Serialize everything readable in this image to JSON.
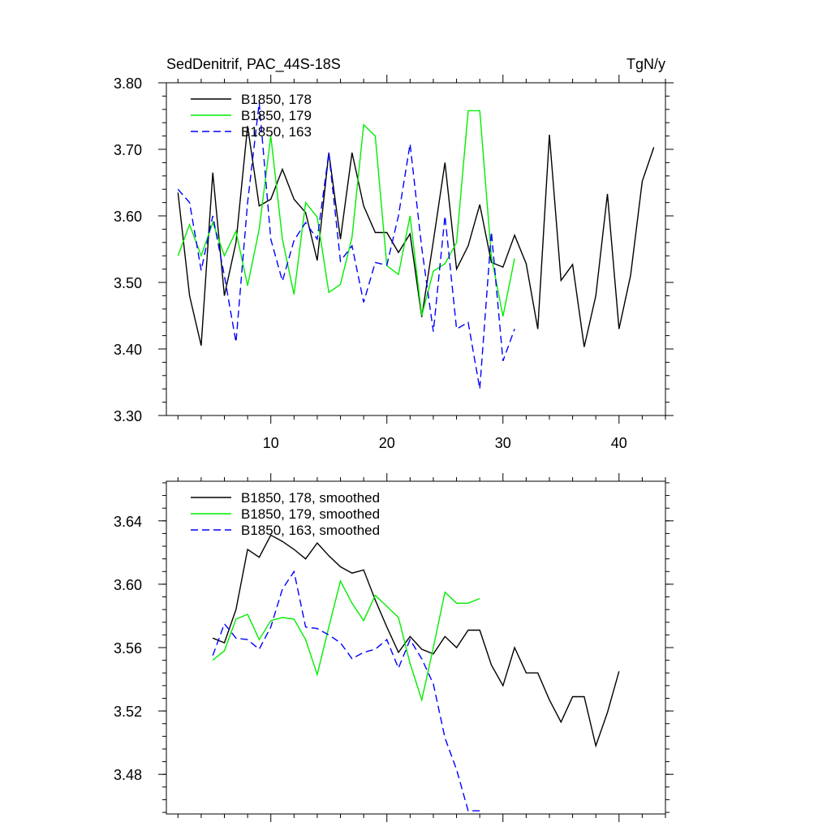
{
  "chart_data": [
    {
      "type": "line",
      "title_left": "SedDenitrif, PAC_44S-18S",
      "title_right": "TgN/y",
      "xlim": [
        1,
        44
      ],
      "ylim": [
        3.3,
        3.8
      ],
      "x_ticks": [
        10,
        20,
        30,
        40
      ],
      "x_tick_labels": [
        "10",
        "20",
        "30",
        "40"
      ],
      "y_ticks": [
        3.3,
        3.4,
        3.5,
        3.6,
        3.7,
        3.8
      ],
      "y_tick_labels": [
        "3.30",
        "3.40",
        "3.50",
        "3.60",
        "3.70",
        "3.80"
      ],
      "legend_position": "top-left",
      "series": [
        {
          "name": "B1850, 178",
          "color": "#000000",
          "dash": "solid",
          "x": [
            2,
            3,
            4,
            5,
            6,
            7,
            8,
            9,
            10,
            11,
            12,
            13,
            14,
            15,
            16,
            17,
            18,
            19,
            20,
            21,
            22,
            23,
            24,
            25,
            26,
            27,
            28,
            29,
            30,
            31,
            32,
            33,
            34,
            35,
            36,
            37,
            38,
            39,
            40,
            41,
            42,
            43
          ],
          "y": [
            3.635,
            3.48,
            3.405,
            3.665,
            3.48,
            3.56,
            3.735,
            3.615,
            3.625,
            3.67,
            3.625,
            3.605,
            3.533,
            3.695,
            3.565,
            3.695,
            3.615,
            3.575,
            3.575,
            3.545,
            3.573,
            3.448,
            3.562,
            3.68,
            3.52,
            3.555,
            3.617,
            3.53,
            3.523,
            3.571,
            3.528,
            3.43,
            3.722,
            3.503,
            3.527,
            3.403,
            3.48,
            3.633,
            3.43,
            3.511,
            3.652,
            3.703
          ]
        },
        {
          "name": "B1850, 179",
          "color": "#00ee00",
          "dash": "solid",
          "x": [
            2,
            3,
            4,
            5,
            6,
            7,
            8,
            9,
            10,
            11,
            12,
            13,
            14,
            15,
            16,
            17,
            18,
            19,
            20,
            21,
            22,
            23,
            24,
            25,
            26,
            27,
            28,
            29,
            30,
            31
          ],
          "y": [
            3.54,
            3.587,
            3.54,
            3.59,
            3.54,
            3.577,
            3.495,
            3.58,
            3.72,
            3.565,
            3.482,
            3.62,
            3.598,
            3.485,
            3.497,
            3.568,
            3.737,
            3.72,
            3.525,
            3.512,
            3.6,
            3.45,
            3.517,
            3.528,
            3.56,
            3.758,
            3.758,
            3.539,
            3.449,
            3.536
          ]
        },
        {
          "name": "B1850, 163",
          "color": "#0000ff",
          "dash": "dashed",
          "x": [
            2,
            3,
            4,
            5,
            6,
            7,
            8,
            9,
            10,
            11,
            12,
            13,
            14,
            15,
            16,
            17,
            18,
            19,
            20,
            21,
            22,
            23,
            24,
            25,
            26,
            27,
            28,
            29,
            30,
            31
          ],
          "y": [
            3.64,
            3.62,
            3.518,
            3.6,
            3.51,
            3.41,
            3.62,
            3.77,
            3.565,
            3.502,
            3.563,
            3.59,
            3.565,
            3.695,
            3.532,
            3.555,
            3.47,
            3.53,
            3.526,
            3.6,
            3.708,
            3.552,
            3.426,
            3.6,
            3.43,
            3.44,
            3.34,
            3.576,
            3.382,
            3.43
          ]
        }
      ]
    },
    {
      "type": "line",
      "xlim": [
        1,
        44
      ],
      "ylim": [
        3.455,
        3.665
      ],
      "x_ticks": [
        10,
        20,
        30,
        40
      ],
      "y_ticks": [
        3.48,
        3.52,
        3.56,
        3.6,
        3.64
      ],
      "y_tick_labels": [
        "3.48",
        "3.52",
        "3.56",
        "3.60",
        "3.64"
      ],
      "legend_position": "top-left",
      "series": [
        {
          "name": "B1850, 178, smoothed",
          "color": "#000000",
          "dash": "solid",
          "x": [
            5,
            6,
            7,
            8,
            9,
            10,
            11,
            12,
            13,
            14,
            15,
            16,
            17,
            18,
            19,
            20,
            21,
            22,
            23,
            24,
            25,
            26,
            27,
            28,
            29,
            30,
            31,
            32,
            33,
            34,
            35,
            36,
            37,
            38,
            39,
            40
          ],
          "y": [
            3.566,
            3.563,
            3.584,
            3.622,
            3.617,
            3.631,
            3.627,
            3.622,
            3.616,
            3.626,
            3.618,
            3.611,
            3.607,
            3.609,
            3.59,
            3.573,
            3.557,
            3.567,
            3.559,
            3.556,
            3.567,
            3.56,
            3.571,
            3.571,
            3.549,
            3.536,
            3.56,
            3.544,
            3.544,
            3.527,
            3.513,
            3.529,
            3.529,
            3.498,
            3.519,
            3.545
          ]
        },
        {
          "name": "B1850, 179, smoothed",
          "color": "#00ee00",
          "dash": "solid",
          "x": [
            5,
            6,
            7,
            8,
            9,
            10,
            11,
            12,
            13,
            14,
            15,
            16,
            17,
            18,
            19,
            20,
            21,
            22,
            23,
            24,
            25,
            26,
            27,
            28
          ],
          "y": [
            3.552,
            3.558,
            3.578,
            3.581,
            3.565,
            3.577,
            3.579,
            3.578,
            3.565,
            3.543,
            3.573,
            3.602,
            3.588,
            3.577,
            3.593,
            3.586,
            3.579,
            3.55,
            3.527,
            3.56,
            3.595,
            3.588,
            3.588,
            3.591
          ]
        },
        {
          "name": "B1850, 163, smoothed",
          "color": "#0000ff",
          "dash": "dashed",
          "x": [
            5,
            6,
            7,
            8,
            9,
            10,
            11,
            12,
            13,
            14,
            15,
            16,
            17,
            18,
            19,
            20,
            21,
            22,
            23,
            24,
            25,
            26,
            27,
            28
          ],
          "y": [
            3.555,
            3.575,
            3.566,
            3.565,
            3.559,
            3.573,
            3.597,
            3.608,
            3.573,
            3.572,
            3.568,
            3.563,
            3.553,
            3.557,
            3.559,
            3.565,
            3.547,
            3.565,
            3.553,
            3.537,
            3.503,
            3.483,
            3.457,
            3.457
          ]
        }
      ]
    }
  ]
}
